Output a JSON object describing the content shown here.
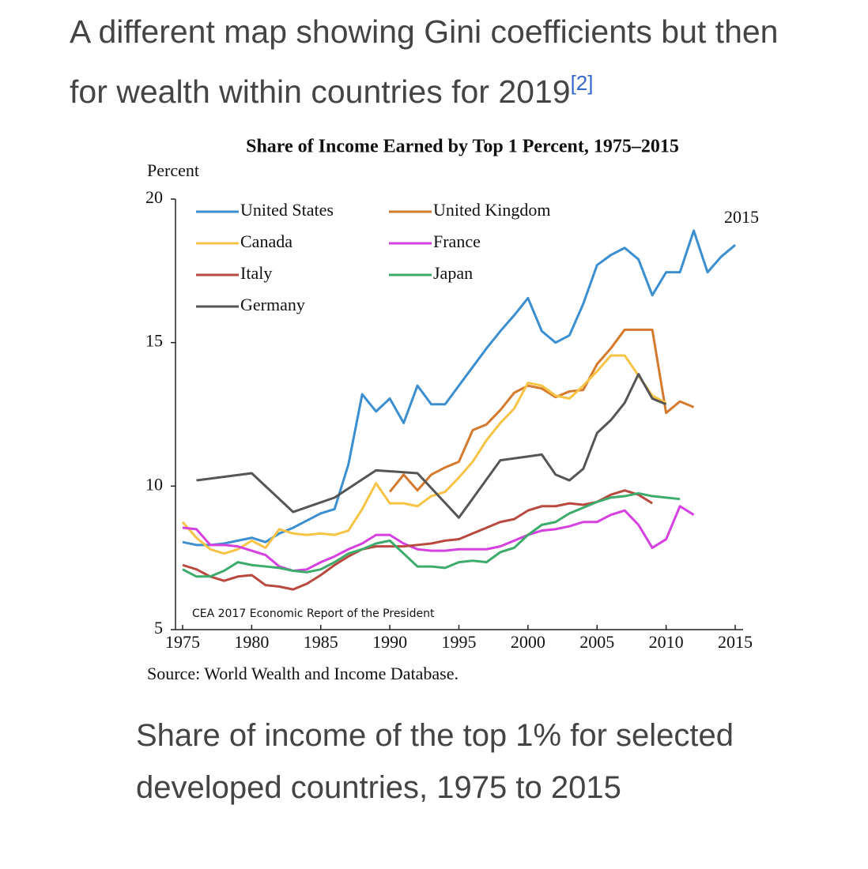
{
  "heading": {
    "text": "A different map showing Gini coefficients but then for wealth within countries for 2019",
    "ref": "[2]"
  },
  "chart_data": {
    "type": "line",
    "title": "Share of Income Earned by Top 1 Percent, 1975–2015",
    "y_label": "Percent",
    "annotation": "2015",
    "note": "CEA 2017 Economic Report of the President",
    "source": "Source: World Wealth and Income Database.",
    "xlim": [
      1975,
      2015
    ],
    "xticks": [
      1975,
      1980,
      1985,
      1990,
      1995,
      2000,
      2005,
      2010,
      2015
    ],
    "ylim": [
      5,
      20
    ],
    "yticks": [
      5,
      10,
      15,
      20
    ],
    "series": [
      {
        "name": "United States",
        "color": "#3b8fd1",
        "x": [
          1975,
          1976,
          1977,
          1978,
          1979,
          1980,
          1981,
          1982,
          1983,
          1984,
          1985,
          1986,
          1987,
          1988,
          1989,
          1990,
          1991,
          1992,
          1993,
          1994,
          1995,
          1996,
          1997,
          1998,
          1999,
          2000,
          2001,
          2002,
          2003,
          2004,
          2005,
          2006,
          2007,
          2008,
          2009,
          2010,
          2011,
          2012,
          2013,
          2014,
          2015
        ],
        "values": [
          8.05,
          7.95,
          7.95,
          8.0,
          8.1,
          8.2,
          8.05,
          8.35,
          8.55,
          8.8,
          9.05,
          9.2,
          10.75,
          13.2,
          12.6,
          13.05,
          12.2,
          13.5,
          12.85,
          12.85,
          13.5,
          14.15,
          14.8,
          15.4,
          15.95,
          16.55,
          15.4,
          15.0,
          15.25,
          16.35,
          17.7,
          18.05,
          18.3,
          17.9,
          16.65,
          17.45,
          17.45,
          18.9,
          17.45,
          18.0,
          18.4
        ]
      },
      {
        "name": "United Kingdom",
        "color": "#d5792c",
        "x": [
          1990,
          1991,
          1992,
          1993,
          1994,
          1995,
          1996,
          1997,
          1998,
          1999,
          2000,
          2001,
          2002,
          2003,
          2004,
          2005,
          2006,
          2007,
          2008,
          2009,
          2010,
          2011,
          2012
        ],
        "values": [
          9.8,
          10.4,
          9.85,
          10.4,
          10.65,
          10.85,
          11.95,
          12.15,
          12.65,
          13.25,
          13.5,
          13.4,
          13.1,
          13.3,
          13.35,
          14.25,
          14.8,
          15.45,
          15.45,
          15.45,
          12.55,
          12.95,
          12.75
        ]
      },
      {
        "name": "Canada",
        "color": "#f6c344",
        "x": [
          1975,
          1976,
          1977,
          1978,
          1979,
          1980,
          1981,
          1982,
          1983,
          1984,
          1985,
          1986,
          1987,
          1988,
          1989,
          1990,
          1991,
          1992,
          1993,
          1994,
          1995,
          1996,
          1997,
          1998,
          1999,
          2000,
          2001,
          2002,
          2003,
          2004,
          2005,
          2006,
          2007,
          2008,
          2009,
          2010
        ],
        "values": [
          8.75,
          8.2,
          7.8,
          7.65,
          7.8,
          8.1,
          7.85,
          8.5,
          8.35,
          8.3,
          8.35,
          8.3,
          8.45,
          9.2,
          10.1,
          9.4,
          9.4,
          9.3,
          9.65,
          9.8,
          10.3,
          10.85,
          11.6,
          12.2,
          12.7,
          13.6,
          13.5,
          13.15,
          13.05,
          13.5,
          14.0,
          14.55,
          14.55,
          13.85,
          13.15,
          12.9
        ]
      },
      {
        "name": "France",
        "color": "#d63fe0",
        "x": [
          1975,
          1976,
          1977,
          1978,
          1979,
          1980,
          1981,
          1982,
          1983,
          1984,
          1985,
          1986,
          1987,
          1988,
          1989,
          1990,
          1991,
          1992,
          1993,
          1994,
          1995,
          1996,
          1997,
          1998,
          1999,
          2000,
          2001,
          2002,
          2003,
          2004,
          2005,
          2006,
          2007,
          2008,
          2009,
          2010,
          2011,
          2012
        ],
        "values": [
          8.55,
          8.5,
          7.95,
          7.95,
          7.9,
          7.75,
          7.6,
          7.2,
          7.05,
          7.1,
          7.35,
          7.55,
          7.8,
          8.0,
          8.3,
          8.3,
          8.0,
          7.8,
          7.75,
          7.75,
          7.8,
          7.8,
          7.8,
          7.9,
          8.1,
          8.3,
          8.45,
          8.5,
          8.6,
          8.75,
          8.75,
          9.0,
          9.15,
          8.65,
          7.85,
          8.15,
          9.3,
          9.0
        ]
      },
      {
        "name": "Italy",
        "color": "#b9493f",
        "x": [
          1975,
          1976,
          1977,
          1978,
          1979,
          1980,
          1981,
          1982,
          1983,
          1984,
          1985,
          1986,
          1987,
          1988,
          1989,
          1990,
          1991,
          1992,
          1993,
          1994,
          1995,
          1996,
          1997,
          1998,
          1999,
          2000,
          2001,
          2002,
          2003,
          2004,
          2005,
          2006,
          2007,
          2008,
          2009
        ],
        "values": [
          7.25,
          7.1,
          6.85,
          6.7,
          6.85,
          6.9,
          6.55,
          6.5,
          6.4,
          6.6,
          6.9,
          7.25,
          7.55,
          7.8,
          7.9,
          7.9,
          7.9,
          7.95,
          8.0,
          8.1,
          8.15,
          8.35,
          8.55,
          8.75,
          8.85,
          9.15,
          9.3,
          9.3,
          9.4,
          9.35,
          9.45,
          9.7,
          9.85,
          9.7,
          9.4
        ]
      },
      {
        "name": "Japan",
        "color": "#3cab6b",
        "x": [
          1975,
          1976,
          1977,
          1978,
          1979,
          1980,
          1981,
          1982,
          1983,
          1984,
          1985,
          1986,
          1987,
          1988,
          1989,
          1990,
          1991,
          1992,
          1993,
          1994,
          1995,
          1996,
          1997,
          1998,
          1999,
          2000,
          2001,
          2002,
          2003,
          2004,
          2005,
          2006,
          2007,
          2008,
          2009,
          2010,
          2011
        ],
        "values": [
          7.1,
          6.85,
          6.85,
          7.05,
          7.35,
          7.25,
          7.2,
          7.15,
          7.05,
          7.0,
          7.1,
          7.35,
          7.65,
          7.8,
          8.0,
          8.1,
          7.65,
          7.2,
          7.2,
          7.15,
          7.35,
          7.4,
          7.35,
          7.7,
          7.85,
          8.3,
          8.65,
          8.75,
          9.05,
          9.25,
          9.45,
          9.6,
          9.65,
          9.75,
          9.65,
          9.6,
          9.55
        ]
      },
      {
        "name": "Germany",
        "color": "#555555",
        "x": [
          1976,
          1980,
          1983,
          1986,
          1989,
          1992,
          1995,
          1998,
          2001,
          2002,
          2003,
          2004,
          2005,
          2006,
          2007,
          2008,
          2009,
          2010
        ],
        "values": [
          10.2,
          10.45,
          9.1,
          9.6,
          10.55,
          10.45,
          8.9,
          10.9,
          11.1,
          10.4,
          10.2,
          10.6,
          11.85,
          12.3,
          12.9,
          13.9,
          13.05,
          12.85
        ]
      }
    ]
  },
  "caption": "Share of income of the top 1% for selected developed countries, 1975 to 2015"
}
